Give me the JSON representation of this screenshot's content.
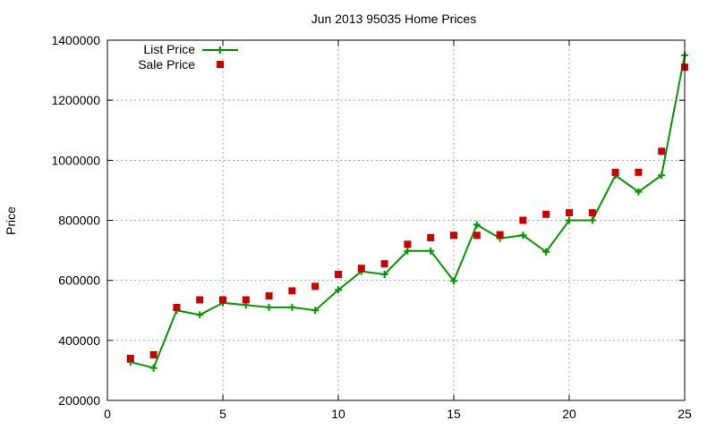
{
  "chart_data": {
    "type": "line",
    "title": "Jun 2013 95035 Home Prices",
    "ylabel": "Price",
    "xlabel": "",
    "xlim": [
      0,
      25
    ],
    "ylim": [
      200000,
      1400000
    ],
    "xticks": [
      0,
      5,
      10,
      15,
      20,
      25
    ],
    "yticks": [
      200000,
      400000,
      600000,
      800000,
      1000000,
      1200000,
      1400000
    ],
    "grid": true,
    "legend_position": "top-left",
    "series": [
      {
        "name": "List Price",
        "style": "line-plus",
        "color": "#009900",
        "x": [
          1,
          2,
          3,
          4,
          5,
          6,
          7,
          8,
          9,
          10,
          11,
          12,
          13,
          14,
          15,
          16,
          17,
          18,
          19,
          20,
          21,
          22,
          23,
          24,
          25
        ],
        "y": [
          328000,
          308000,
          500000,
          485000,
          525000,
          518000,
          510000,
          510000,
          500000,
          568000,
          630000,
          620000,
          698000,
          698000,
          598000,
          785000,
          740000,
          750000,
          695000,
          800000,
          800000,
          950000,
          895000,
          950000,
          1350000
        ]
      },
      {
        "name": "Sale Price",
        "style": "square-points",
        "color": "#cc0000",
        "x": [
          1,
          2,
          3,
          4,
          5,
          6,
          7,
          8,
          9,
          10,
          11,
          12,
          13,
          14,
          15,
          16,
          17,
          18,
          19,
          20,
          21,
          22,
          23,
          24,
          25
        ],
        "y": [
          340000,
          352000,
          510000,
          535000,
          535000,
          535000,
          548000,
          565000,
          580000,
          620000,
          640000,
          655000,
          720000,
          742000,
          750000,
          750000,
          752000,
          800000,
          820000,
          825000,
          825000,
          960000,
          960000,
          1030000,
          1310000
        ]
      }
    ]
  }
}
